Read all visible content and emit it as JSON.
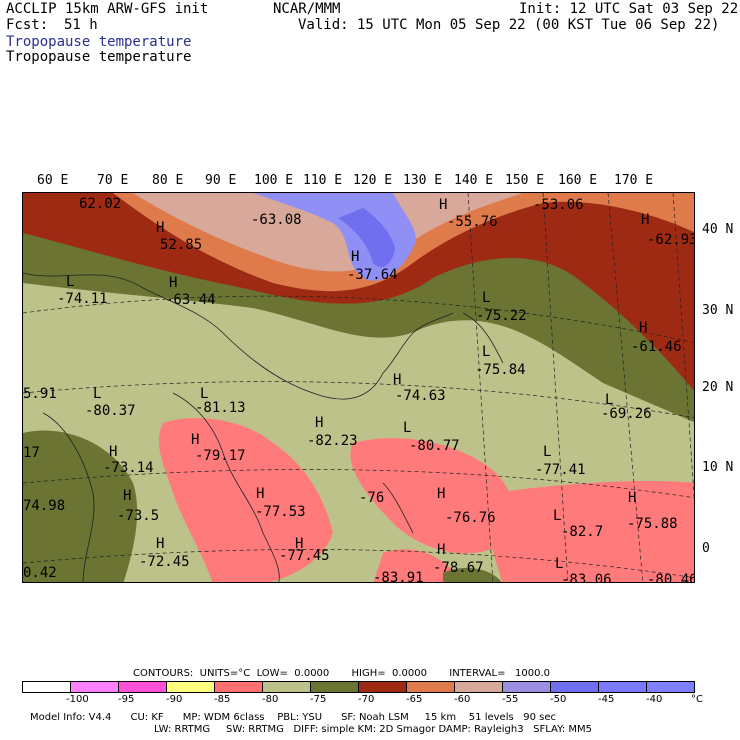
{
  "header": {
    "model": "ACCLIP 15km ARW-GFS init",
    "org": "NCAR/MMM",
    "init": "Init: 12 UTC Sat 03 Sep 22",
    "fcst_label": "Fcst:",
    "fcst_value": "51 h",
    "valid": "Valid: 15 UTC Mon 05 Sep 22 (00 KST Tue 06 Sep 22)",
    "field_title_1": "Tropopause temperature",
    "field_title_2": "Tropopause temperature"
  },
  "lon_labels": [
    "60 E",
    "70 E",
    "80 E",
    "90 E",
    "100 E",
    "110 E",
    "120 E",
    "130 E",
    "140 E",
    "150 E",
    "160 E",
    "170 E"
  ],
  "lat_labels": [
    "40 N",
    "30 N",
    "20 N",
    "10 N",
    "0"
  ],
  "markers": [
    {
      "t": "62.02"
    },
    {
      "t": "-63.08"
    },
    {
      "t": "H"
    },
    {
      "t": "-55.76"
    },
    {
      "t": "-53.06"
    },
    {
      "t": "H"
    },
    {
      "t": "-62.93"
    },
    {
      "t": "H"
    },
    {
      "t": "52.85"
    },
    {
      "t": "H"
    },
    {
      "t": "-37.64"
    },
    {
      "t": "L"
    },
    {
      "t": "-74.11"
    },
    {
      "t": "H"
    },
    {
      "t": "-63.44"
    },
    {
      "t": "L"
    },
    {
      "t": "-75.22"
    },
    {
      "t": "H"
    },
    {
      "t": "-61.46"
    },
    {
      "t": "L"
    },
    {
      "t": "-75.84"
    },
    {
      "t": "5.91"
    },
    {
      "t": "L"
    },
    {
      "t": "-80.37"
    },
    {
      "t": "L"
    },
    {
      "t": "-81.13"
    },
    {
      "t": "H"
    },
    {
      "t": "-74.63"
    },
    {
      "t": "L"
    },
    {
      "t": "-69.26"
    },
    {
      "t": "H"
    },
    {
      "t": "-82.23"
    },
    {
      "t": "L"
    },
    {
      "t": "-80.77"
    },
    {
      "t": "17"
    },
    {
      "t": "H"
    },
    {
      "t": "-79.17"
    },
    {
      "t": "H"
    },
    {
      "t": "-73.14"
    },
    {
      "t": "L"
    },
    {
      "t": "-77.41"
    },
    {
      "t": "H"
    },
    {
      "t": "H"
    },
    {
      "t": "-76"
    },
    {
      "t": "H"
    },
    {
      "t": "H"
    },
    {
      "t": "74.98"
    },
    {
      "t": "-73.5"
    },
    {
      "t": "-77.53"
    },
    {
      "t": "-76.76"
    },
    {
      "t": "-82.7"
    },
    {
      "t": "-75.88"
    },
    {
      "t": "H"
    },
    {
      "t": "L"
    },
    {
      "t": "H"
    },
    {
      "t": "H"
    },
    {
      "t": "L"
    },
    {
      "t": "-72.45"
    },
    {
      "t": "-77.45"
    },
    {
      "t": "-78.67"
    },
    {
      "t": "0.42"
    },
    {
      "t": "-83.91"
    },
    {
      "t": "-83.06"
    },
    {
      "t": "-80.46"
    }
  ],
  "contours_line": "CONTOURS:  UNITS=°C  LOW=  0.0000       HIGH=  0.0000       INTERVAL=   1000.0",
  "colorbar": {
    "colors": [
      "#ffffff",
      "#ff80ff",
      "#ff50d8",
      "#ffff80",
      "#ff7070",
      "#bdc28a",
      "#6b7433",
      "#9e2a14",
      "#df7b4b",
      "#d8a89a",
      "#9a8fe0",
      "#6f6ff0",
      "#7a7aff",
      "#7f80ff"
    ],
    "labels": [
      "-100",
      "-95",
      "-90",
      "-85",
      "-80",
      "-75",
      "-70",
      "-65",
      "-60",
      "-55",
      "-50",
      "-45",
      "-40",
      "°C"
    ]
  },
  "footer": {
    "line1": "Model Info: V4.4      CU: KF      MP: WDM 6class    PBL: YSU      SF: Noah LSM     15 km    51 levels   90 sec",
    "line2": "LW: RRTMG     SW: RRTMG   DIFF: simple KM: 2D Smagor DAMP: Rayleigh3   SFLAY: MM5"
  }
}
